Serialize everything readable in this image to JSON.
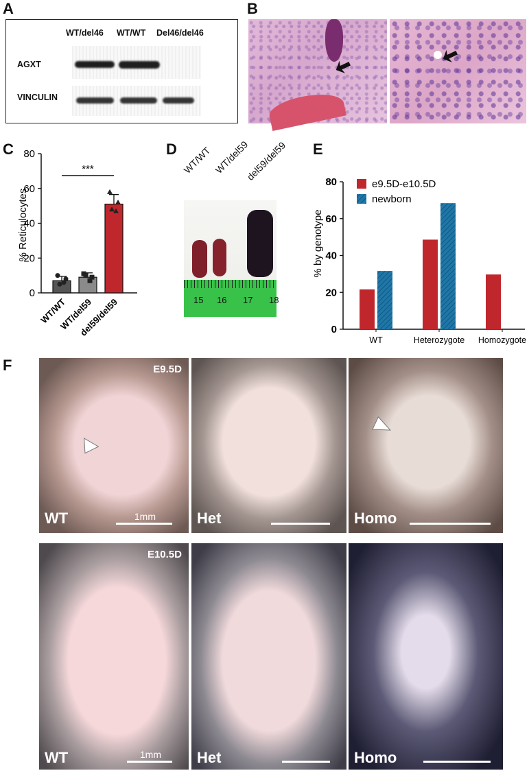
{
  "panels": {
    "A": "A",
    "B": "B",
    "C": "C",
    "D": "D",
    "E": "E",
    "F": "F"
  },
  "blot": {
    "lanes": [
      "WT/del46",
      "WT/WT",
      "Del46/del46"
    ],
    "rows": [
      "AGXT",
      "VINCULIN"
    ]
  },
  "spleen": {
    "genotypes": [
      "WT/WT",
      "WT/del59",
      "del59/del59"
    ],
    "ruler_ticks": [
      "15",
      "16",
      "17",
      "18"
    ]
  },
  "embryos": {
    "stages": [
      "E9.5D",
      "E10.5D"
    ],
    "genotypes": [
      "WT",
      "Het",
      "Homo"
    ],
    "scale_label": "1mm"
  },
  "colors": {
    "red": "#c0272d",
    "blue": "#1f77a8",
    "grey_dark": "#555555",
    "grey_light": "#8a8a8a"
  },
  "chart_data": [
    {
      "type": "bar",
      "panel": "C",
      "categories": [
        "WT/WT",
        "WT/del59",
        "del59/del59"
      ],
      "values": [
        7,
        9,
        51
      ],
      "errors": [
        2.5,
        2.5,
        5.5
      ],
      "points": [
        [
          10,
          8,
          5,
          6
        ],
        [
          11,
          9,
          10,
          7
        ],
        [
          58,
          52,
          48,
          47
        ]
      ],
      "ylabel": "% Reticulocytes",
      "ylim": [
        0,
        80
      ],
      "yticks": [
        0,
        20,
        40,
        60,
        80
      ],
      "significance": "***"
    },
    {
      "type": "bar",
      "panel": "E",
      "categories": [
        "WT",
        "Heterozygote",
        "Homozygote"
      ],
      "series": [
        {
          "name": "e9.5D-e10.5D",
          "values": [
            21.6,
            48.6,
            29.7
          ]
        },
        {
          "name": "newborn",
          "values": [
            31.6,
            68.4,
            0
          ]
        }
      ],
      "ylabel": "% by genotype",
      "ylim": [
        0,
        80
      ],
      "yticks": [
        0,
        20,
        40,
        60,
        80
      ],
      "legend": "top-left"
    }
  ]
}
